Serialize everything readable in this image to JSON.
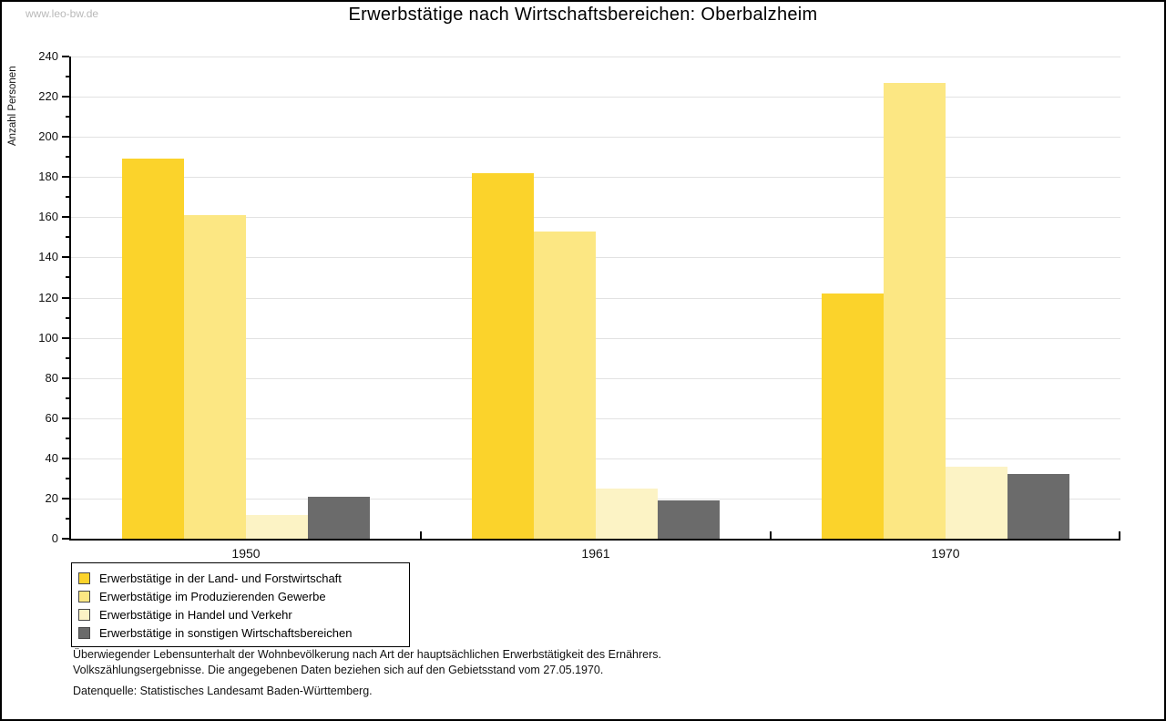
{
  "watermark": "www.leo-bw.de",
  "chart_data": {
    "type": "bar",
    "title": "Erwerbstätige nach Wirtschaftsbereichen: Oberbalzheim",
    "xlabel": "",
    "ylabel": "Anzahl Personen",
    "ylim": [
      0,
      240
    ],
    "ytick_step": 20,
    "ytick_minor_step": 10,
    "grid": true,
    "legend_position": "bottom-left",
    "categories": [
      "1950",
      "1961",
      "1970"
    ],
    "series": [
      {
        "name": "Erwerbstätige in der Land- und Forstwirtschaft",
        "color": "#fbd32b",
        "values": [
          189,
          182,
          122
        ]
      },
      {
        "name": "Erwerbstätige im Produzierenden Gewerbe",
        "color": "#fce783",
        "values": [
          161,
          153,
          227
        ]
      },
      {
        "name": "Erwerbstätige in Handel und Verkehr",
        "color": "#fcf3c5",
        "values": [
          12,
          25,
          36
        ]
      },
      {
        "name": "Erwerbstätige in sonstigen Wirtschaftsbereichen",
        "color": "#6b6b6b",
        "values": [
          21,
          19,
          32
        ]
      }
    ],
    "colors": {
      "axis": "#000000",
      "gridline": "#e2e2e2",
      "background": "#ffffff",
      "swatch_border": "#4a4a4a"
    }
  },
  "footnotes": {
    "line1": "Überwiegender Lebensunterhalt der Wohnbevölkerung nach Art der hauptsächlichen Erwerbstätigkeit des Ernährers.",
    "line2": "Volkszählungsergebnisse. Die angegebenen Daten beziehen sich auf den Gebietsstand vom 27.05.1970.",
    "source": "Datenquelle: Statistisches Landesamt Baden-Württemberg."
  }
}
